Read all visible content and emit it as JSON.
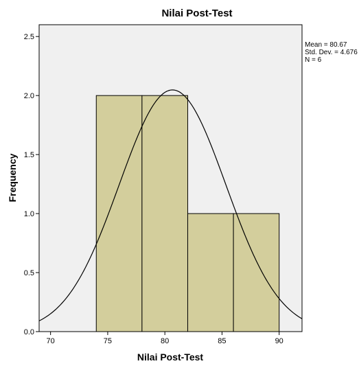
{
  "chart_data": {
    "type": "bar",
    "subtype": "histogram",
    "title": "Nilai Post-Test",
    "xlabel": "Nilai Post-Test",
    "ylabel": "Frequency",
    "xlim": [
      69,
      92
    ],
    "ylim": [
      0,
      2.6
    ],
    "x_ticks": [
      70,
      75,
      80,
      85,
      90
    ],
    "y_ticks": [
      0.0,
      0.5,
      1.0,
      1.5,
      2.0,
      2.5
    ],
    "y_tick_labels": [
      "0.0",
      "0.5",
      "1.0",
      "1.5",
      "2.0",
      "2.5"
    ],
    "bins": [
      {
        "start": 74,
        "end": 78,
        "count": 2
      },
      {
        "start": 78,
        "end": 82,
        "count": 2
      },
      {
        "start": 82,
        "end": 86,
        "count": 1
      },
      {
        "start": 86,
        "end": 90,
        "count": 1
      }
    ],
    "normal_curve": {
      "mean": 80.67,
      "sd": 4.676,
      "n": 6,
      "bin_width": 4
    },
    "stats_text": [
      "Mean = 80.67",
      "Std. Dev. = 4.676",
      "N = 6"
    ],
    "legend_position": "right",
    "grid": false,
    "colors": {
      "plot_background": "#f0f0f0",
      "bar_fill": "#d3ce9c",
      "bar_stroke": "#000000",
      "curve": "#000000",
      "axis": "#000000"
    }
  }
}
